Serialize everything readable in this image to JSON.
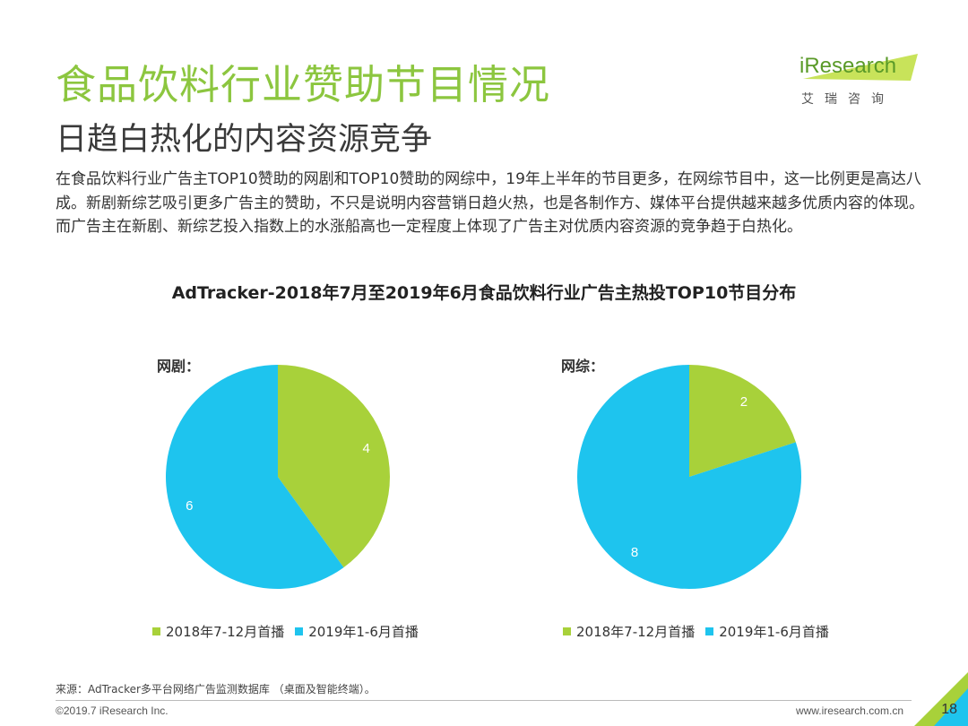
{
  "header": {
    "title": "食品饮料行业赞助节目情况",
    "subtitle": "日趋白热化的内容资源竞争"
  },
  "logo": {
    "text": "iResearch",
    "sub": "艾瑞咨询"
  },
  "body_text": "在食品饮料行业广告主TOP10赞助的网剧和TOP10赞助的网综中，19年上半年的节目更多，在网综节目中，这一比例更是高达八成。新剧新综艺吸引更多广告主的赞助，不只是说明内容营销日趋火热，也是各制作方、媒体平台提供越来越多优质内容的体现。而广告主在新剧、新综艺投入指数上的水涨船高也一定程度上体现了广告主对优质内容资源的竞争趋于白热化。",
  "colors": {
    "green": "#A8D13A",
    "blue": "#1EC4EE",
    "title_green": "#8CC63F"
  },
  "chart_data": [
    {
      "type": "pie",
      "title": "AdTracker-2018年7月至2019年6月食品饮料行业广告主热投TOP10节目分布",
      "label": "网剧：",
      "categories": [
        "2018年7-12月首播",
        "2019年1-6月首播"
      ],
      "values": [
        4,
        6
      ],
      "colors": [
        "#A8D13A",
        "#1EC4EE"
      ],
      "legend": "bottom"
    },
    {
      "type": "pie",
      "title": "AdTracker-2018年7月至2019年6月食品饮料行业广告主热投TOP10节目分布",
      "label": "网综：",
      "categories": [
        "2018年7-12月首播",
        "2019年1-6月首播"
      ],
      "values": [
        2,
        8
      ],
      "colors": [
        "#A8D13A",
        "#1EC4EE"
      ],
      "legend": "bottom"
    }
  ],
  "footer": {
    "source": "来源：AdTracker多平台网络广告监测数据库 （桌面及智能终端）。",
    "copyright": "©2019.7 iResearch Inc.",
    "website": "www.iresearch.com.cn",
    "page": "18"
  }
}
